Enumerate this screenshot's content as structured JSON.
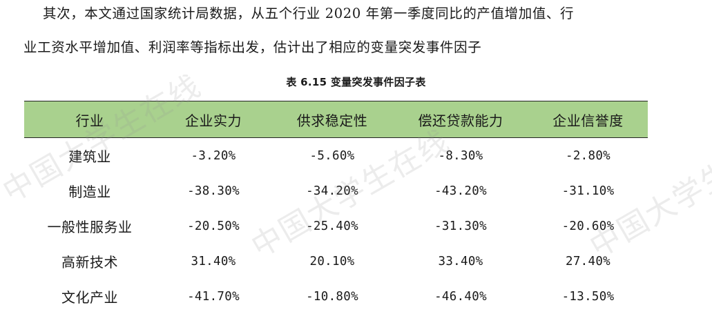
{
  "paragraph": {
    "line1": "其次，本文通过国家统计局数据，从五个行业 2020 年第一季度同比的产值增加值、行",
    "line2": "业工资水平增加值、利润率等指标出发，估计出了相应的变量突发事件因子"
  },
  "table": {
    "caption": "表 6.15 变量突发事件因子表",
    "header_color": "#a9d18e",
    "headers": [
      "行业",
      "企业实力",
      "供求稳定性",
      "偿还贷款能力",
      "企业信誉度"
    ],
    "rows": [
      [
        "建筑业",
        "-3.20%",
        "-5.60%",
        "-8.30%",
        "-2.80%"
      ],
      [
        "制造业",
        "-38.30%",
        "-34.20%",
        "-43.20%",
        "-31.10%"
      ],
      [
        "一般性服务业",
        "-20.50%",
        "-25.40%",
        "-31.30%",
        "-20.60%"
      ],
      [
        "高新技术",
        "31.40%",
        "20.10%",
        "33.40%",
        "27.40%"
      ],
      [
        "文化产业",
        "-41.70%",
        "-10.80%",
        "-46.40%",
        "-13.50%"
      ]
    ]
  },
  "watermark": {
    "text_a": "中国大学生在线",
    "text_b": "中国大学生在线"
  }
}
